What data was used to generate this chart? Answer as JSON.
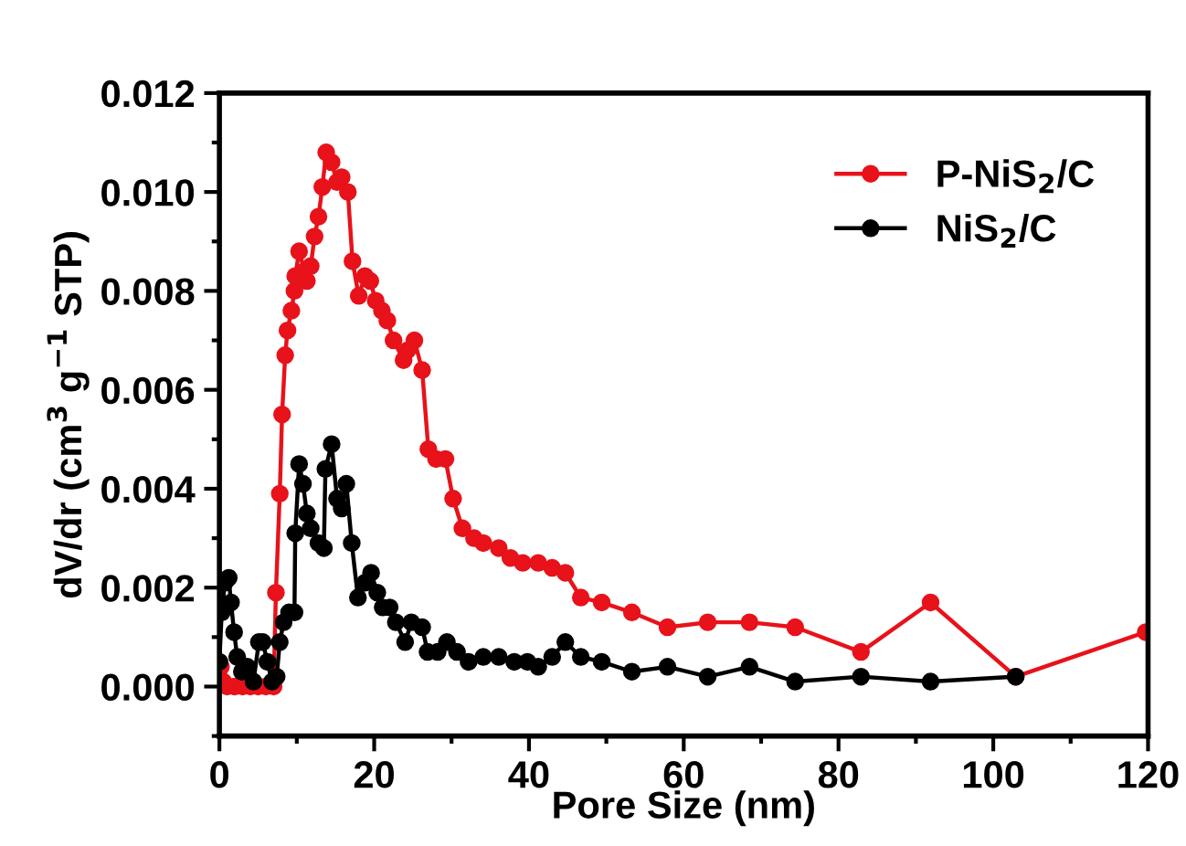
{
  "chart_data": {
    "type": "line",
    "xlabel": "Pore Size (nm)",
    "ylabel": "dV/dr (cm$^{3}$ g$^{−1}$ STP)",
    "xlim": [
      0,
      120
    ],
    "ylim": [
      -0.001,
      0.012
    ],
    "xticks": [
      0,
      {
        "value": 10,
        "label": null
      },
      20,
      {
        "value": 30,
        "label": null
      },
      40,
      {
        "value": 50,
        "label": null
      },
      60,
      {
        "value": 70,
        "label": null
      },
      80,
      {
        "value": 90,
        "label": null
      },
      100,
      {
        "value": 110,
        "label": null
      },
      120
    ],
    "yticks": [
      {
        "value": -0.001,
        "label": null
      },
      {
        "value": 0,
        "label": "0.000"
      },
      {
        "value": 0.001,
        "label": null
      },
      {
        "value": 0.002,
        "label": "0.002"
      },
      {
        "value": 0.003,
        "label": null
      },
      {
        "value": 0.004,
        "label": "0.004"
      },
      {
        "value": 0.005,
        "label": null
      },
      {
        "value": 0.006,
        "label": "0.006"
      },
      {
        "value": 0.007,
        "label": null
      },
      {
        "value": 0.008,
        "label": "0.008"
      },
      {
        "value": 0.009,
        "label": null
      },
      {
        "value": 0.01,
        "label": "0.010"
      },
      {
        "value": 0.011,
        "label": null
      },
      {
        "value": 0.012,
        "label": "0.012"
      }
    ],
    "grid": false,
    "legend": "top right",
    "marker": "circle",
    "line_style": "solid",
    "series": [
      {
        "name": "P-NiS$_{2}$/C",
        "color": "#e8121a",
        "x": [
          0.2,
          0.5,
          1,
          2,
          3,
          4,
          5,
          6,
          7,
          7.3,
          7.8,
          8.1,
          8.5,
          8.8,
          9.3,
          9.7,
          9.8,
          10.3,
          11.0,
          11.3,
          11.8,
          12.3,
          12.8,
          13.3,
          13.8,
          14.5,
          15.2,
          15.8,
          16.6,
          17.2,
          18.0,
          18.8,
          19.5,
          20.2,
          21.0,
          21.7,
          22.5,
          23.8,
          24.3,
          25.2,
          26.2,
          27.0,
          28.0,
          29.2,
          30.2,
          31.4,
          32.9,
          34.1,
          36.1,
          37.6,
          39.2,
          41.2,
          43.0,
          44.7,
          46.7,
          49.4,
          53.3,
          57.9,
          63.1,
          68.5,
          74.4,
          82.9,
          91.9,
          102.9,
          119.7
        ],
        "values": [
          0.0004,
          0.0001,
          0,
          0,
          0,
          0,
          0,
          0,
          0,
          0.0019,
          0.0039,
          0.0055,
          0.0067,
          0.0072,
          0.0076,
          0.008,
          0.0083,
          0.0088,
          0.0084,
          0.0082,
          0.0085,
          0.0091,
          0.0095,
          0.0101,
          0.0108,
          0.0106,
          0.0102,
          0.0103,
          0.01,
          0.0086,
          0.0079,
          0.0083,
          0.0082,
          0.0078,
          0.0076,
          0.0074,
          0.007,
          0.0066,
          0.0068,
          0.007,
          0.0064,
          0.0048,
          0.0046,
          0.0046,
          0.0038,
          0.0032,
          0.003,
          0.0029,
          0.0028,
          0.0026,
          0.0025,
          0.0025,
          0.0024,
          0.0023,
          0.0018,
          0.0017,
          0.0015,
          0.0012,
          0.0013,
          0.0013,
          0.0012,
          0.0007,
          0.0017,
          0.0002,
          0.0011
        ]
      },
      {
        "name": "NiS$_{2}$/C",
        "color": "#000000",
        "x": [
          0,
          0.3,
          0.7,
          1.2,
          1.5,
          1.9,
          2.3,
          2.9,
          3.6,
          4.4,
          5.1,
          5.6,
          6.2,
          6.8,
          7.4,
          7.8,
          8.3,
          9.0,
          9.7,
          9.8,
          10.3,
          10.8,
          11.3,
          11.8,
          12.8,
          13.5,
          13.7,
          14.5,
          15.2,
          15.8,
          16.4,
          17.1,
          17.9,
          18.8,
          19.6,
          20.4,
          21.1,
          22.0,
          22.8,
          24.0,
          24.8,
          26.2,
          26.9,
          28.2,
          29.4,
          30.7,
          32.2,
          34.1,
          36.1,
          38.1,
          39.8,
          41.2,
          43.0,
          44.7,
          46.7,
          49.4,
          53.3,
          57.9,
          63.1,
          68.5,
          74.4,
          82.9,
          91.9,
          102.9
        ],
        "values": [
          0.0005,
          0.0015,
          0.0021,
          0.0022,
          0.0017,
          0.0011,
          0.0006,
          0.0003,
          0.0004,
          0.0001,
          0.0009,
          0.0009,
          0.0005,
          0.0001,
          0.0002,
          0.0009,
          0.0013,
          0.0015,
          0.0015,
          0.0031,
          0.0045,
          0.0041,
          0.0035,
          0.0032,
          0.0029,
          0.0028,
          0.0044,
          0.0049,
          0.0038,
          0.0036,
          0.0041,
          0.0029,
          0.0018,
          0.0021,
          0.0023,
          0.0019,
          0.0016,
          0.0016,
          0.0013,
          0.0009,
          0.0013,
          0.0012,
          0.0007,
          0.0007,
          0.0009,
          0.0007,
          0.0005,
          0.0006,
          0.0006,
          0.0005,
          0.0005,
          0.0004,
          0.0006,
          0.0009,
          0.0006,
          0.0005,
          0.0003,
          0.0004,
          0.0002,
          0.0004,
          0.0001,
          0.0002,
          0.0001,
          0.0002
        ]
      }
    ]
  }
}
